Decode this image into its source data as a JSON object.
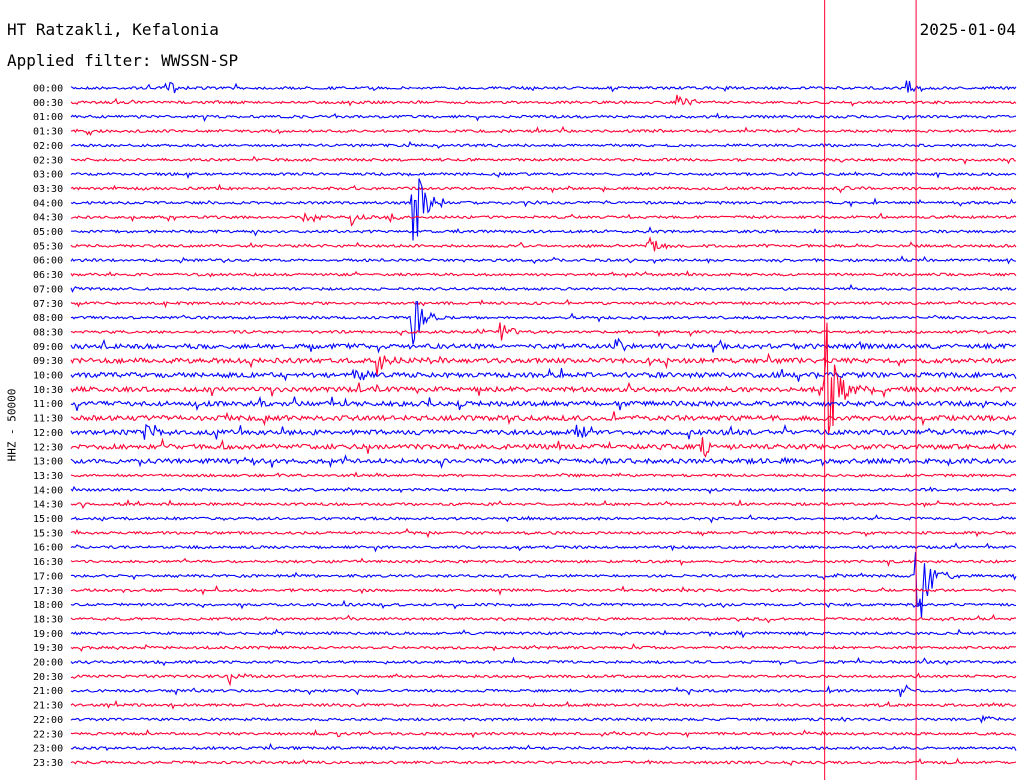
{
  "header": {
    "station": "HT Ratzakli, Kefalonia",
    "date": "2025-01-04",
    "filter": "Applied filter: WWSSN-SP",
    "channel": "HHZ - 50000"
  },
  "chart_data": {
    "type": "helicorder",
    "title": "HT Ratzakli, Kefalonia",
    "subtitle": "Applied filter: WWSSN-SP",
    "ylabel": "HHZ - 50000",
    "row_labels": [
      "00:00",
      "00:30",
      "01:00",
      "01:30",
      "02:00",
      "02:30",
      "03:00",
      "03:30",
      "04:00",
      "04:30",
      "05:00",
      "05:30",
      "06:00",
      "06:30",
      "07:00",
      "07:30",
      "08:00",
      "08:30",
      "09:00",
      "09:30",
      "10:00",
      "10:30",
      "11:00",
      "11:30",
      "12:00",
      "12:30",
      "13:00",
      "13:30",
      "14:00",
      "14:30",
      "15:00",
      "15:30",
      "16:00",
      "16:30",
      "17:00",
      "17:30",
      "18:00",
      "18:30",
      "19:00",
      "19:30",
      "20:00",
      "20:30",
      "21:00",
      "21:30",
      "22:00",
      "22:30",
      "23:00",
      "23:30"
    ],
    "row_minutes": 30,
    "colors": {
      "even_rows": "#0000ff",
      "odd_rows": "#ff0033",
      "markers": "#ff0033"
    },
    "vertical_markers_minute": [
      23.9,
      26.8
    ],
    "events": [
      {
        "row": 0,
        "minute": 3.0,
        "amp": 10
      },
      {
        "row": 0,
        "minute": 26.5,
        "amp": 11
      },
      {
        "row": 1,
        "minute": 19.2,
        "amp": 12
      },
      {
        "row": 7,
        "minute": 24.4,
        "amp": 4
      },
      {
        "row": 8,
        "minute": 10.8,
        "amp": 60
      },
      {
        "row": 9,
        "minute": 7.4,
        "amp": 12
      },
      {
        "row": 9,
        "minute": 8.9,
        "amp": 9
      },
      {
        "row": 9,
        "minute": 10.0,
        "amp": 7
      },
      {
        "row": 11,
        "minute": 18.3,
        "amp": 12
      },
      {
        "row": 16,
        "minute": 10.8,
        "amp": 35
      },
      {
        "row": 17,
        "minute": 13.6,
        "amp": 12
      },
      {
        "row": 18,
        "minute": 17.2,
        "amp": 10
      },
      {
        "row": 19,
        "minute": 9.7,
        "amp": 14
      },
      {
        "row": 19,
        "minute": 11.2,
        "amp": 8
      },
      {
        "row": 20,
        "minute": 8.9,
        "amp": 12
      },
      {
        "row": 21,
        "minute": 23.9,
        "amp": 90
      },
      {
        "row": 24,
        "minute": 2.2,
        "amp": 15
      },
      {
        "row": 24,
        "minute": 16.0,
        "amp": 12
      },
      {
        "row": 25,
        "minute": 20.0,
        "amp": 12
      },
      {
        "row": 34,
        "minute": 26.8,
        "amp": 75
      },
      {
        "row": 41,
        "minute": 5.0,
        "amp": 10
      },
      {
        "row": 42,
        "minute": 26.3,
        "amp": 8
      },
      {
        "row": 44,
        "minute": 28.8,
        "amp": 6
      }
    ]
  }
}
